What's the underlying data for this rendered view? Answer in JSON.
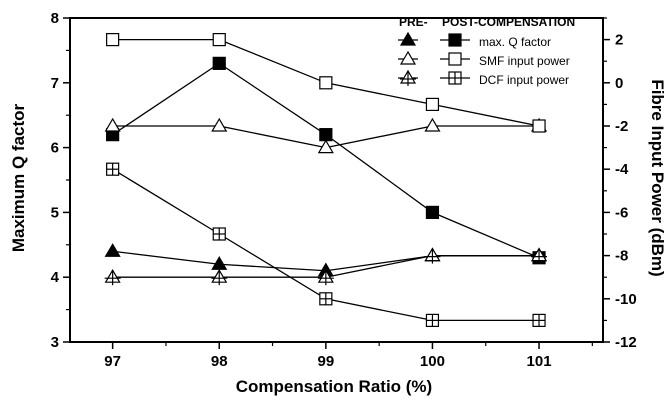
{
  "chart_data": {
    "type": "line",
    "title": "",
    "xlabel": "Compensation Ratio (%)",
    "ylabel_left": "Maximum Q factor",
    "ylabel_right": "Fibre Input Power (dBm)",
    "x": [
      97,
      98,
      99,
      100,
      101
    ],
    "xticks": [
      "97",
      "98",
      "99",
      "100",
      "101"
    ],
    "xlim": [
      96.6,
      101.6
    ],
    "ylim_left": [
      3,
      8
    ],
    "yticks_left": [
      "3",
      "4",
      "5",
      "6",
      "7",
      "8"
    ],
    "ylim_right": [
      -12,
      3
    ],
    "yticks_right": [
      "-12",
      "-10",
      "-8",
      "-6",
      "-4",
      "-2",
      "0",
      "2"
    ],
    "grid": false,
    "legend_position": "top-right",
    "legend": {
      "header_pre": "PRE-",
      "header_post": "POST-COMPENSATION",
      "entries": [
        {
          "label": "max. Q factor",
          "pre_marker": "triangle-filled",
          "post_marker": "square-filled"
        },
        {
          "label": "SMF input power",
          "pre_marker": "triangle-open",
          "post_marker": "square-open"
        },
        {
          "label": "DCF input power",
          "pre_marker": "triangle-cross",
          "post_marker": "square-cross"
        }
      ]
    },
    "series": [
      {
        "group": "pre",
        "quantity": "max. Q factor",
        "axis": "left",
        "marker": "triangle-filled",
        "values": [
          4.4,
          4.2,
          4.1,
          4.33,
          4.33
        ]
      },
      {
        "group": "post",
        "quantity": "max. Q factor",
        "axis": "left",
        "marker": "square-filled",
        "values": [
          6.2,
          7.3,
          6.2,
          5.0,
          4.3
        ]
      },
      {
        "group": "pre",
        "quantity": "SMF input power",
        "axis": "right",
        "marker": "triangle-open",
        "values": [
          -2,
          -2,
          -3,
          -2,
          -2
        ]
      },
      {
        "group": "post",
        "quantity": "SMF input power",
        "axis": "right",
        "marker": "square-open",
        "values": [
          2,
          2,
          0,
          -1,
          -2
        ]
      },
      {
        "group": "pre",
        "quantity": "DCF input power",
        "axis": "right",
        "marker": "triangle-cross",
        "values": [
          -9,
          -9,
          -9,
          -8,
          -8
        ]
      },
      {
        "group": "post",
        "quantity": "DCF input power",
        "axis": "right",
        "marker": "square-cross",
        "values": [
          -4,
          -7,
          -10,
          -11,
          -11
        ]
      }
    ]
  }
}
